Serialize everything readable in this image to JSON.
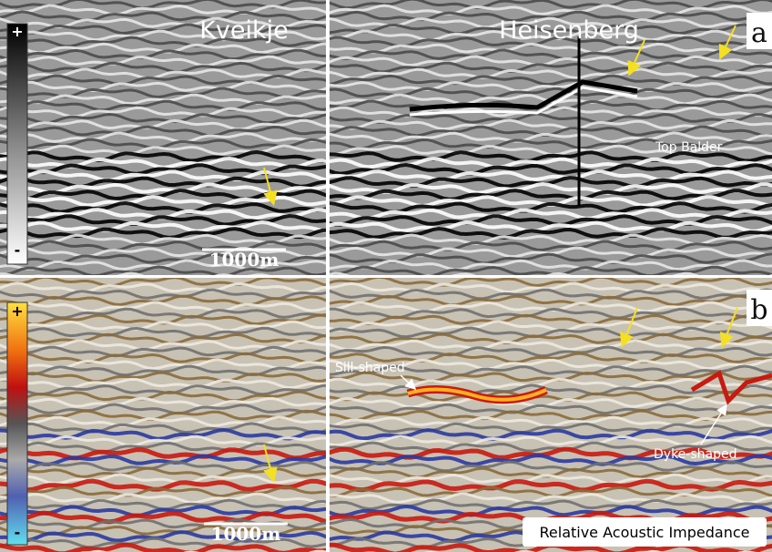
{
  "panel_a": {
    "label": "a",
    "left_title": "Kveikje",
    "right_title": "Heisenberg",
    "scale_bar": "1000m",
    "colorbar": {
      "max": "+",
      "min": "-"
    },
    "annotation": "Top Balder"
  },
  "panel_b": {
    "label": "b",
    "scale_bar": "1000m",
    "colorbar": {
      "max": "+",
      "min": "-"
    },
    "annotations": [
      "Sill-shaped",
      "Dyke-shaped"
    ],
    "caption": "Relative Acoustic Impedance"
  }
}
